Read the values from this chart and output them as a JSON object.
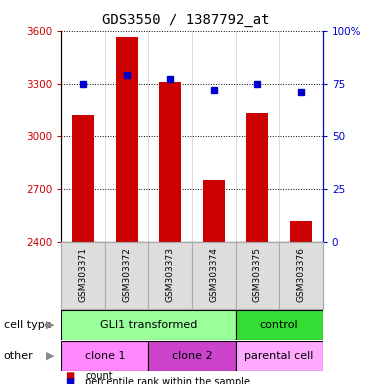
{
  "title": "GDS3550 / 1387792_at",
  "samples": [
    "GSM303371",
    "GSM303372",
    "GSM303373",
    "GSM303374",
    "GSM303375",
    "GSM303376"
  ],
  "counts": [
    3120,
    3565,
    3310,
    2750,
    3130,
    2520
  ],
  "percentile_ranks": [
    75,
    79,
    77,
    72,
    75,
    71
  ],
  "ylim_left": [
    2400,
    3600
  ],
  "ylim_right": [
    0,
    100
  ],
  "yticks_left": [
    2400,
    2700,
    3000,
    3300,
    3600
  ],
  "yticks_right": [
    0,
    25,
    50,
    75,
    100
  ],
  "ytick_labels_left": [
    "2400",
    "2700",
    "3000",
    "3300",
    "3600"
  ],
  "ytick_labels_right": [
    "0",
    "25",
    "50",
    "75",
    "100%"
  ],
  "cell_type_groups": [
    {
      "label": "GLI1 transformed",
      "start": 0,
      "end": 4,
      "color": "#99ff99"
    },
    {
      "label": "control",
      "start": 4,
      "end": 6,
      "color": "#33dd33"
    }
  ],
  "other_groups": [
    {
      "label": "clone 1",
      "start": 0,
      "end": 2,
      "color": "#ff88ff"
    },
    {
      "label": "clone 2",
      "start": 2,
      "end": 4,
      "color": "#cc44cc"
    },
    {
      "label": "parental cell",
      "start": 4,
      "end": 6,
      "color": "#ffaaff"
    }
  ],
  "bar_color": "#cc0000",
  "dot_color": "#0000cc",
  "bar_width": 0.5,
  "bg_color": "#ffffff",
  "label_cell_type": "cell type",
  "label_other": "other",
  "legend_count": "count",
  "legend_percentile": "percentile rank within the sample",
  "title_fontsize": 10,
  "tick_fontsize": 7.5,
  "sample_label_fontsize": 6.5
}
